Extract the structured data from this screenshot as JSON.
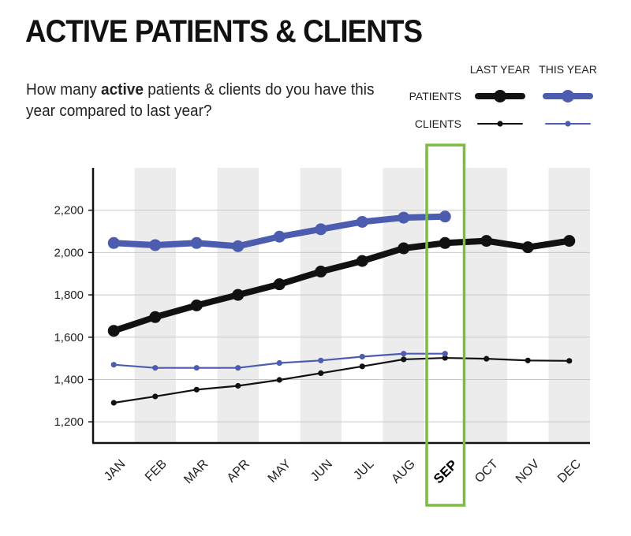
{
  "header": {
    "title": "ACTIVE PATIENTS & CLIENTS",
    "subtitle_before": "How many ",
    "subtitle_bold": "active",
    "subtitle_after": " patients & clients do you have this year compared to last year?"
  },
  "colors": {
    "last_year": "#111111",
    "this_year": "#4c5cae",
    "highlight_box": "#7dbb42",
    "band": "#ececec",
    "grid": "#c8c8c8"
  },
  "chart_data": {
    "type": "line",
    "categories": [
      "JAN",
      "FEB",
      "MAR",
      "APR",
      "MAY",
      "JUN",
      "JUL",
      "AUG",
      "SEP",
      "OCT",
      "NOV",
      "DEC"
    ],
    "highlight_category": "SEP",
    "ylim": [
      1100,
      2400
    ],
    "yticks": [
      1200,
      1400,
      1600,
      1800,
      2000,
      2200
    ],
    "ytick_labels": [
      "1,200",
      "1,400",
      "1,600",
      "1,800",
      "2,000",
      "2,200"
    ],
    "legend": {
      "columns": [
        "LAST YEAR",
        "THIS YEAR"
      ],
      "rows": [
        "PATIENTS",
        "CLIENTS"
      ]
    },
    "series": [
      {
        "metric": "PATIENTS",
        "period": "LAST YEAR",
        "weight": "thick",
        "values": [
          1630,
          1695,
          1750,
          1800,
          1850,
          1910,
          1960,
          2020,
          2045,
          2055,
          2025,
          2055
        ]
      },
      {
        "metric": "PATIENTS",
        "period": "THIS YEAR",
        "weight": "thick",
        "values": [
          2045,
          2035,
          2045,
          2030,
          2075,
          2110,
          2145,
          2165,
          2170,
          null,
          null,
          null
        ]
      },
      {
        "metric": "CLIENTS",
        "period": "LAST YEAR",
        "weight": "thin",
        "values": [
          1290,
          1320,
          1352,
          1370,
          1398,
          1430,
          1462,
          1495,
          1502,
          1498,
          1490,
          1488
        ]
      },
      {
        "metric": "CLIENTS",
        "period": "THIS YEAR",
        "weight": "thin",
        "values": [
          1470,
          1455,
          1455,
          1455,
          1478,
          1490,
          1508,
          1522,
          1522,
          null,
          null,
          null
        ]
      }
    ]
  }
}
